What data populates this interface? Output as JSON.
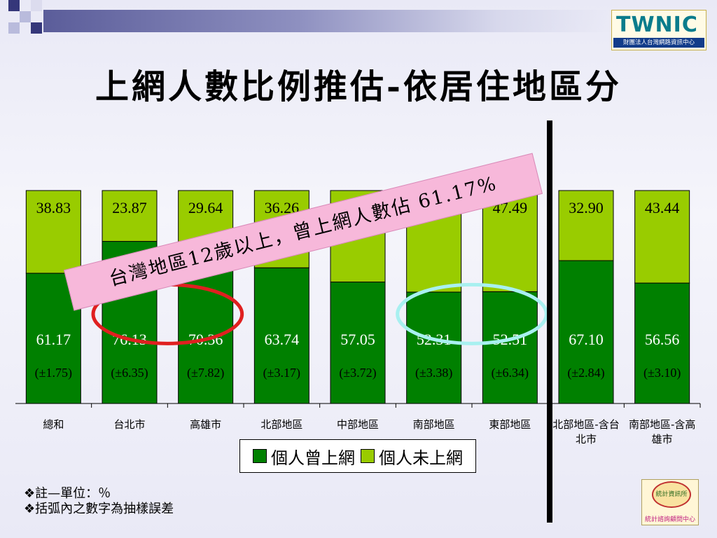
{
  "slide_title": "上網人數比例推估-依居住地區分",
  "banner_text": "台灣地區12歲以上，曾上網人數佔 61.17%",
  "logo_top": {
    "mark": "TWNIC",
    "caption": "財團法人台灣網路資訊中心"
  },
  "logo_bottom": {
    "mark": "統計資訊所",
    "caption": "統計諮詢顧問中心"
  },
  "notes": [
    "❖註—單位：％",
    "❖括弧內之數字為抽樣誤差"
  ],
  "colors": {
    "online": "#008000",
    "offline": "#99cc00",
    "highlight_red": "#e02020",
    "highlight_cyan": "#a8f0f0"
  },
  "chart_data": {
    "type": "bar",
    "stacked": true,
    "categories": [
      "總和",
      "台北市",
      "高雄市",
      "北部地區",
      "中部地區",
      "南部地區",
      "東部地區",
      "北部地區-含台北市",
      "南部地區-含高雄市"
    ],
    "series": [
      {
        "name": "個人曾上網",
        "values": [
          61.17,
          76.13,
          70.36,
          63.74,
          57.05,
          52.31,
          52.51,
          67.1,
          56.56
        ],
        "labels": [
          "61.17",
          "76.13",
          "70.36",
          "63.74",
          "57.05",
          "52.31",
          "52.51",
          "67.10",
          "56.56"
        ]
      },
      {
        "name": "個人未上網",
        "values": [
          38.83,
          23.87,
          29.64,
          36.26,
          42.95,
          47.69,
          47.49,
          32.9,
          43.44
        ],
        "labels": [
          "38.83",
          "23.87",
          "29.64",
          "36.26",
          "42.95",
          "47.69",
          "47.49",
          "32.90",
          "43.44"
        ]
      }
    ],
    "errors": [
      "(±1.75)",
      "(±6.35)",
      "(±7.82)",
      "(±3.17)",
      "(±3.72)",
      "(±3.38)",
      "(±6.34)",
      "(±2.84)",
      "(±3.10)"
    ],
    "ylim": [
      0,
      100
    ],
    "highlighted_categories": {
      "red": [
        1,
        2
      ],
      "cyan": [
        5,
        6
      ]
    },
    "legend_position": "bottom"
  }
}
